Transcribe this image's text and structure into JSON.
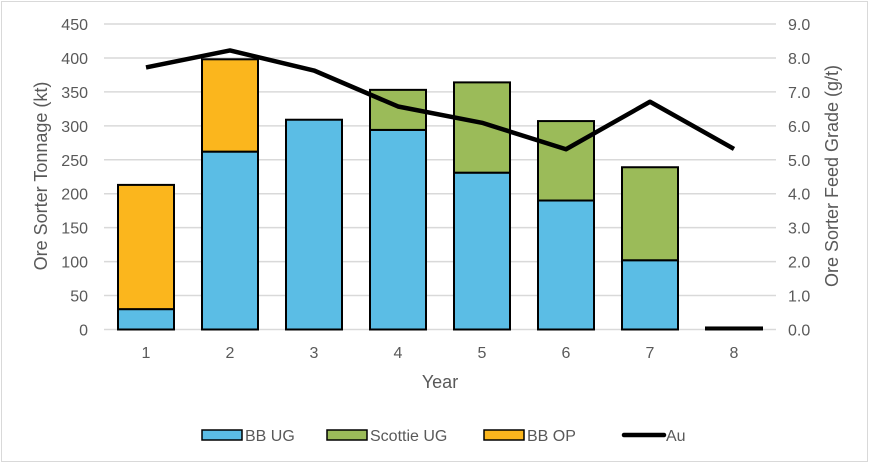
{
  "chart_data": {
    "type": "bar",
    "subtype": "stacked-bar-with-line-secondary-axis",
    "title": "",
    "categories": [
      "1",
      "2",
      "3",
      "4",
      "5",
      "6",
      "7",
      "8"
    ],
    "xlabel": "Year",
    "ylabel": "Ore Sorter Tonnage (kt)",
    "y2label": "Ore Sorter Feed Grade (g/t)",
    "ylim": [
      0,
      450
    ],
    "yticks": [
      "0",
      "50",
      "100",
      "150",
      "200",
      "250",
      "300",
      "350",
      "400",
      "450"
    ],
    "ytick_values": [
      0,
      50,
      100,
      150,
      200,
      250,
      300,
      350,
      400,
      450
    ],
    "y2lim": [
      0,
      9
    ],
    "y2ticks": [
      "0.0",
      "1.0",
      "2.0",
      "3.0",
      "4.0",
      "5.0",
      "6.0",
      "7.0",
      "8.0",
      "9.0"
    ],
    "y2tick_values": [
      0,
      1,
      2,
      3,
      4,
      5,
      6,
      7,
      8,
      9
    ],
    "grid": true,
    "legend_position": "bottom",
    "series": [
      {
        "name": "BB UG",
        "type": "bar",
        "axis": "left",
        "color": "#5BBDE5",
        "values": [
          30,
          262,
          309,
          294,
          231,
          190,
          102,
          0
        ]
      },
      {
        "name": "Scottie UG",
        "type": "bar",
        "axis": "left",
        "color": "#9BBB59",
        "values": [
          0,
          0,
          0,
          59,
          133,
          117,
          137,
          3
        ]
      },
      {
        "name": "BB OP",
        "type": "bar",
        "axis": "left",
        "color": "#FBB61D",
        "values": [
          183,
          136,
          0,
          0,
          0,
          0,
          0,
          0
        ]
      },
      {
        "name": "Au",
        "type": "line",
        "axis": "right",
        "color": "#000000",
        "values": [
          7.72,
          8.22,
          7.63,
          6.57,
          6.09,
          5.31,
          6.71,
          5.32
        ]
      }
    ]
  }
}
